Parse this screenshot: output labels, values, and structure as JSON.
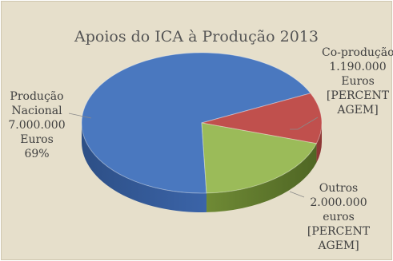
{
  "chart_data": {
    "type": "pie",
    "title": "Apoios do ICA à Produção 2013",
    "slices": [
      {
        "lines": [
          "Produção",
          "Nacional",
          "7.000.000",
          "Euros",
          "69%"
        ],
        "value": 7000000,
        "percent_label": "69%",
        "color": "#4a78bf"
      },
      {
        "lines": [
          "Co-produção",
          "1.190.000",
          "Euros",
          "[PERCENT",
          "AGEM]"
        ],
        "value": 1190000,
        "percent_label": "[PERCENTAGEM]",
        "color": "#c0504d"
      },
      {
        "lines": [
          "Outros",
          "2.000.000",
          "euros",
          "[PERCENT",
          "AGEM]"
        ],
        "value": 2000000,
        "percent_label": "[PERCENTAGEM]",
        "color": "#9bbb59"
      }
    ],
    "legend": "none",
    "style": "3d-pie"
  }
}
